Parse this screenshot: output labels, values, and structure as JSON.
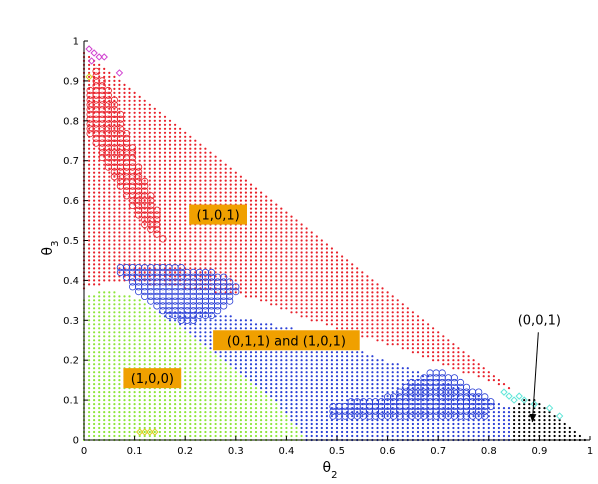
{
  "chart_data": {
    "type": "scatter",
    "title": "",
    "xlabel": "θ",
    "xlabel_sub": "2",
    "ylabel": "θ",
    "ylabel_sub": "3",
    "xlim": [
      0,
      1
    ],
    "ylim": [
      0,
      1
    ],
    "xticks": [
      "0",
      "0.1",
      "0.2",
      "0.3",
      "0.4",
      "0.5",
      "0.6",
      "0.7",
      "0.8",
      "0.9",
      "1"
    ],
    "yticks": [
      "0",
      "0.1",
      "0.2",
      "0.3",
      "0.4",
      "0.5",
      "0.6",
      "0.7",
      "0.8",
      "0.9",
      "1"
    ],
    "grid": false,
    "colors": {
      "red": "#e8202a",
      "blue": "#2a3fd6",
      "green": "#8ee63a",
      "black": "#000000",
      "cyan": "#5fe6d8",
      "magenta": "#d040d0",
      "yellow": "#d8d020",
      "label_bg": "#f0a000"
    },
    "regions": [
      {
        "id": "red",
        "marker": "dot",
        "color": "red",
        "polygon": [
          [
            0.0,
            0.96
          ],
          [
            0.0,
            0.38
          ],
          [
            0.06,
            0.4
          ],
          [
            0.2,
            0.38
          ],
          [
            0.32,
            0.36
          ],
          [
            0.45,
            0.3
          ],
          [
            0.6,
            0.24
          ],
          [
            0.75,
            0.17
          ],
          [
            0.86,
            0.12
          ],
          [
            0.0,
            0.98
          ]
        ]
      },
      {
        "id": "green",
        "marker": "dot",
        "color": "green",
        "polygon": [
          [
            0.0,
            0.0
          ],
          [
            0.0,
            0.36
          ],
          [
            0.04,
            0.38
          ],
          [
            0.1,
            0.36
          ],
          [
            0.2,
            0.28
          ],
          [
            0.3,
            0.18
          ],
          [
            0.39,
            0.08
          ],
          [
            0.44,
            0.0
          ]
        ]
      },
      {
        "id": "blue",
        "marker": "dot",
        "color": "blue",
        "polygon": [
          [
            0.44,
            0.0
          ],
          [
            0.39,
            0.08
          ],
          [
            0.3,
            0.18
          ],
          [
            0.2,
            0.28
          ],
          [
            0.14,
            0.32
          ],
          [
            0.2,
            0.33
          ],
          [
            0.3,
            0.31
          ],
          [
            0.45,
            0.27
          ],
          [
            0.6,
            0.2
          ],
          [
            0.75,
            0.13
          ],
          [
            0.85,
            0.08
          ],
          [
            0.85,
            0.0
          ]
        ]
      },
      {
        "id": "black",
        "marker": "dot",
        "color": "black",
        "polygon": [
          [
            0.85,
            0.0
          ],
          [
            0.85,
            0.08
          ],
          [
            0.88,
            0.11
          ],
          [
            0.92,
            0.08
          ],
          [
            1.0,
            0.0
          ]
        ]
      }
    ],
    "circle_clusters": [
      {
        "id": "red-circles-upper",
        "color": "red",
        "polygon": [
          [
            0.0,
            0.8
          ],
          [
            0.02,
            0.94
          ],
          [
            0.06,
            0.86
          ],
          [
            0.1,
            0.72
          ],
          [
            0.14,
            0.6
          ],
          [
            0.16,
            0.49
          ],
          [
            0.13,
            0.52
          ],
          [
            0.08,
            0.62
          ],
          [
            0.03,
            0.72
          ]
        ]
      },
      {
        "id": "blue-circles-left",
        "color": "blue",
        "polygon": [
          [
            0.07,
            0.44
          ],
          [
            0.15,
            0.44
          ],
          [
            0.26,
            0.42
          ],
          [
            0.31,
            0.39
          ],
          [
            0.3,
            0.36
          ],
          [
            0.25,
            0.31
          ],
          [
            0.2,
            0.29
          ],
          [
            0.15,
            0.32
          ],
          [
            0.1,
            0.37
          ],
          [
            0.07,
            0.42
          ]
        ]
      },
      {
        "id": "blue-circles-right",
        "color": "blue",
        "polygon": [
          [
            0.49,
            0.06
          ],
          [
            0.49,
            0.09
          ],
          [
            0.6,
            0.11
          ],
          [
            0.68,
            0.17
          ],
          [
            0.7,
            0.18
          ],
          [
            0.77,
            0.13
          ],
          [
            0.81,
            0.1
          ],
          [
            0.8,
            0.06
          ],
          [
            0.7,
            0.05
          ],
          [
            0.58,
            0.05
          ]
        ]
      }
    ],
    "extra_markers": [
      {
        "color": "magenta",
        "shape": "diamond",
        "points": [
          [
            0.01,
            0.98
          ],
          [
            0.02,
            0.97
          ],
          [
            0.03,
            0.96
          ],
          [
            0.04,
            0.96
          ],
          [
            0.015,
            0.95
          ],
          [
            0.07,
            0.92
          ]
        ]
      },
      {
        "color": "cyan",
        "shape": "diamond",
        "points": [
          [
            0.83,
            0.12
          ],
          [
            0.84,
            0.11
          ],
          [
            0.85,
            0.1
          ],
          [
            0.86,
            0.11
          ],
          [
            0.87,
            0.1
          ],
          [
            0.89,
            0.09
          ],
          [
            0.92,
            0.08
          ],
          [
            0.94,
            0.06
          ]
        ]
      },
      {
        "color": "yellow",
        "shape": "diamond",
        "points": [
          [
            0.11,
            0.02
          ],
          [
            0.12,
            0.02
          ],
          [
            0.13,
            0.02
          ],
          [
            0.14,
            0.02
          ],
          [
            0.01,
            0.91
          ]
        ]
      }
    ],
    "region_labels": [
      {
        "text": "(1,0,1)",
        "x": 0.265,
        "y": 0.565
      },
      {
        "text": "(0,1,1) and (1,0,1)",
        "x": 0.4,
        "y": 0.25
      },
      {
        "text": "(1,0,0)",
        "x": 0.135,
        "y": 0.155
      }
    ],
    "annotation": {
      "text": "(0,0,1)",
      "x": 0.89,
      "y": 0.29,
      "arrow_to": [
        0.89,
        0.045
      ]
    }
  }
}
